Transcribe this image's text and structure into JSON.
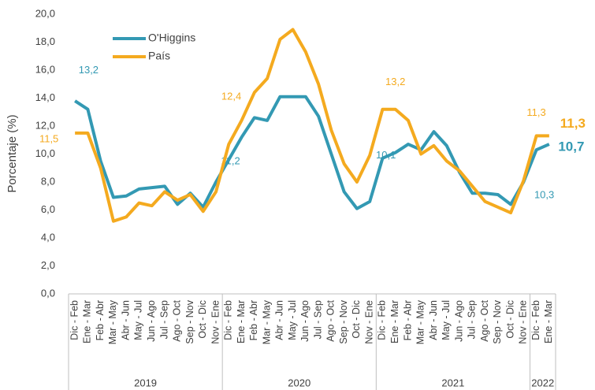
{
  "chart_data": {
    "type": "line",
    "y_label": "Porcentaje (%)",
    "categories": [
      "Dic - Feb",
      "Ene - Mar",
      "Feb - Abr",
      "Mar - May",
      "Abr - Jun",
      "May - Jul",
      "Jun - Ago",
      "Jul - Sep",
      "Ago - Oct",
      "Sep - Nov",
      "Oct - Dic",
      "Nov - Ene",
      "Dic - Feb",
      "Ene - Mar",
      "Feb - Abr",
      "Mar - May",
      "Abr - Jun",
      "May - Jul",
      "Jun - Ago",
      "Jul - Sep",
      "Ago - Oct",
      "Sep - Nov",
      "Oct - Dic",
      "Nov - Ene",
      "Dic - Feb",
      "Ene - Mar",
      "Feb - Abr",
      "Mar - May",
      "Abr - Jun",
      "May - Jul",
      "Jun - Ago",
      "Jul - Sep",
      "Ago - Oct",
      "Sep - Nov",
      "Oct - Dic",
      "Nov - Ene",
      "Dic - Feb",
      "Ene - Mar"
    ],
    "groups": [
      {
        "label": "2019",
        "count": 12
      },
      {
        "label": "2020",
        "count": 12
      },
      {
        "label": "2021",
        "count": 12
      },
      {
        "label": "2022",
        "count": 2
      }
    ],
    "series": [
      {
        "name": "O'Higgins",
        "color": "#3399b3",
        "values": [
          13.8,
          13.2,
          9.5,
          6.9,
          7.0,
          7.5,
          7.6,
          7.7,
          6.4,
          7.2,
          6.2,
          8.0,
          9.6,
          11.2,
          12.6,
          12.4,
          14.1,
          14.1,
          14.1,
          12.7,
          10.0,
          7.3,
          6.1,
          6.6,
          9.7,
          10.1,
          10.7,
          10.3,
          11.6,
          10.6,
          8.7,
          7.2,
          7.2,
          7.1,
          6.4,
          8.0,
          10.3,
          10.7
        ],
        "value_labels": [
          null,
          "13,2",
          null,
          null,
          null,
          null,
          null,
          null,
          null,
          null,
          null,
          null,
          null,
          "11,2",
          null,
          null,
          null,
          null,
          null,
          null,
          null,
          null,
          null,
          null,
          null,
          "10,1",
          null,
          null,
          null,
          null,
          null,
          null,
          null,
          null,
          null,
          null,
          "10,3",
          "10,7"
        ]
      },
      {
        "name": "País",
        "color": "#f4aa1f",
        "values": [
          11.5,
          11.5,
          9.0,
          5.2,
          5.5,
          6.5,
          6.3,
          7.3,
          6.7,
          7.1,
          5.9,
          7.3,
          10.7,
          12.4,
          14.4,
          15.4,
          18.2,
          18.9,
          17.3,
          15.0,
          11.7,
          9.3,
          8.0,
          9.9,
          13.2,
          13.2,
          12.4,
          10.0,
          10.6,
          9.5,
          8.8,
          7.7,
          6.6,
          6.2,
          5.8,
          8.1,
          11.3,
          11.3
        ],
        "value_labels": [
          "11,5",
          null,
          null,
          null,
          null,
          null,
          null,
          null,
          null,
          null,
          null,
          null,
          null,
          "12,4",
          null,
          null,
          null,
          null,
          null,
          null,
          null,
          null,
          null,
          null,
          null,
          "13,2",
          null,
          null,
          null,
          null,
          null,
          null,
          null,
          null,
          null,
          null,
          "11,3",
          "11,3"
        ]
      }
    ],
    "ylim": [
      0,
      20
    ],
    "yticks": [
      {
        "value": 0,
        "label": "0,0"
      },
      {
        "value": 2,
        "label": "2,0"
      },
      {
        "value": 4,
        "label": "4,0"
      },
      {
        "value": 6,
        "label": "6,0"
      },
      {
        "value": 8,
        "label": "8,0"
      },
      {
        "value": 10,
        "label": "10,0"
      },
      {
        "value": 12,
        "label": "12,0"
      },
      {
        "value": 14,
        "label": "14,0"
      },
      {
        "value": 16,
        "label": "16,0"
      },
      {
        "value": 18,
        "label": "18,0"
      },
      {
        "value": 20,
        "label": "20,0"
      }
    ],
    "grid": false,
    "legend": "top-left"
  }
}
